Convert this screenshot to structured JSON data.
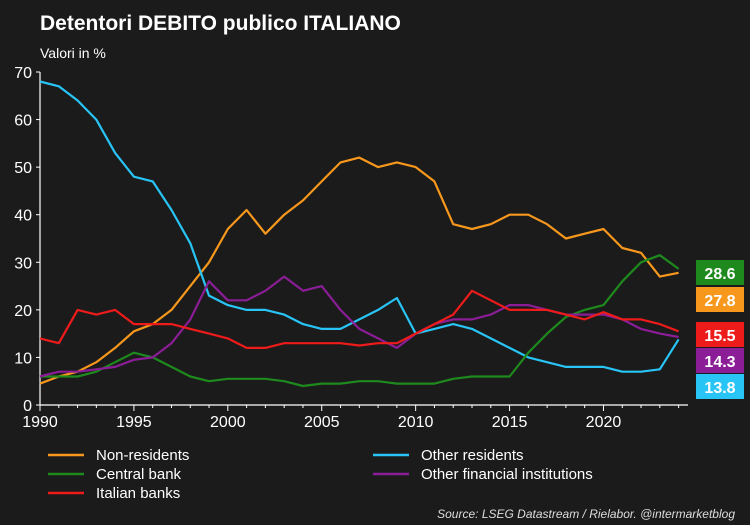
{
  "chart_data": {
    "type": "line",
    "title": "Detentori DEBITO publico ITALIANO",
    "subtitle": "Valori in %",
    "source": "Source: LSEG Datastream / Rielabor. @intermarketblog",
    "xlim": [
      1990,
      2024.5
    ],
    "ylim": [
      0,
      70
    ],
    "x_ticks": [
      1990,
      1995,
      2000,
      2005,
      2010,
      2015,
      2020
    ],
    "y_ticks": [
      0,
      10,
      20,
      30,
      40,
      50,
      60,
      70
    ],
    "grid": false,
    "legend_position": "bottom",
    "series": [
      {
        "name": "Non-residents",
        "color": "#f7981d",
        "last_label": "27.8",
        "points": [
          [
            1990,
            4.5
          ],
          [
            1991,
            6
          ],
          [
            1992,
            7
          ],
          [
            1993,
            9
          ],
          [
            1994,
            12
          ],
          [
            1995,
            15.5
          ],
          [
            1996,
            17
          ],
          [
            1997,
            20
          ],
          [
            1998,
            25
          ],
          [
            1999,
            30
          ],
          [
            2000,
            37
          ],
          [
            2001,
            41
          ],
          [
            2002,
            36
          ],
          [
            2003,
            40
          ],
          [
            2004,
            43
          ],
          [
            2005,
            47
          ],
          [
            2006,
            51
          ],
          [
            2007,
            52
          ],
          [
            2008,
            50
          ],
          [
            2009,
            51
          ],
          [
            2010,
            50
          ],
          [
            2011,
            47
          ],
          [
            2012,
            38
          ],
          [
            2013,
            37
          ],
          [
            2014,
            38
          ],
          [
            2015,
            40
          ],
          [
            2016,
            40
          ],
          [
            2017,
            38
          ],
          [
            2018,
            35
          ],
          [
            2019,
            36
          ],
          [
            2020,
            37
          ],
          [
            2021,
            33
          ],
          [
            2022,
            32
          ],
          [
            2023,
            27
          ],
          [
            2024,
            27.8
          ]
        ]
      },
      {
        "name": "Other residents",
        "color": "#29c4f6",
        "last_label": "13.8",
        "points": [
          [
            1990,
            68
          ],
          [
            1991,
            67
          ],
          [
            1992,
            64
          ],
          [
            1993,
            60
          ],
          [
            1994,
            53
          ],
          [
            1995,
            48
          ],
          [
            1996,
            47
          ],
          [
            1997,
            41
          ],
          [
            1998,
            34
          ],
          [
            1999,
            23
          ],
          [
            2000,
            21
          ],
          [
            2001,
            20
          ],
          [
            2002,
            20
          ],
          [
            2003,
            19
          ],
          [
            2004,
            17
          ],
          [
            2005,
            16
          ],
          [
            2006,
            16
          ],
          [
            2007,
            18
          ],
          [
            2008,
            20
          ],
          [
            2009,
            22.5
          ],
          [
            2010,
            15
          ],
          [
            2011,
            16
          ],
          [
            2012,
            17
          ],
          [
            2013,
            16
          ],
          [
            2014,
            14
          ],
          [
            2015,
            12
          ],
          [
            2016,
            10
          ],
          [
            2017,
            9
          ],
          [
            2018,
            8
          ],
          [
            2019,
            8
          ],
          [
            2020,
            8
          ],
          [
            2021,
            7
          ],
          [
            2022,
            7
          ],
          [
            2023,
            7.5
          ],
          [
            2024,
            13.8
          ]
        ]
      },
      {
        "name": "Central bank",
        "color": "#1e8a1e",
        "last_label": "28.6",
        "points": [
          [
            1990,
            6
          ],
          [
            1991,
            6
          ],
          [
            1992,
            6
          ],
          [
            1993,
            7
          ],
          [
            1994,
            9
          ],
          [
            1995,
            11
          ],
          [
            1996,
            10
          ],
          [
            1997,
            8
          ],
          [
            1998,
            6
          ],
          [
            1999,
            5
          ],
          [
            2000,
            5.5
          ],
          [
            2001,
            5.5
          ],
          [
            2002,
            5.5
          ],
          [
            2003,
            5
          ],
          [
            2004,
            4
          ],
          [
            2005,
            4.5
          ],
          [
            2006,
            4.5
          ],
          [
            2007,
            5
          ],
          [
            2008,
            5
          ],
          [
            2009,
            4.5
          ],
          [
            2010,
            4.5
          ],
          [
            2011,
            4.5
          ],
          [
            2012,
            5.5
          ],
          [
            2013,
            6
          ],
          [
            2014,
            6
          ],
          [
            2015,
            6
          ],
          [
            2016,
            11
          ],
          [
            2017,
            15
          ],
          [
            2018,
            18.5
          ],
          [
            2019,
            20
          ],
          [
            2020,
            21
          ],
          [
            2021,
            26
          ],
          [
            2022,
            30
          ],
          [
            2023,
            31.5
          ],
          [
            2024,
            28.6
          ]
        ]
      },
      {
        "name": "Other financial institutions",
        "color": "#8b1d96",
        "last_label": "14.3",
        "points": [
          [
            1990,
            6
          ],
          [
            1991,
            7
          ],
          [
            1992,
            7
          ],
          [
            1993,
            7.5
          ],
          [
            1994,
            8
          ],
          [
            1995,
            9.5
          ],
          [
            1996,
            10
          ],
          [
            1997,
            13
          ],
          [
            1998,
            18
          ],
          [
            1999,
            26
          ],
          [
            2000,
            22
          ],
          [
            2001,
            22
          ],
          [
            2002,
            24
          ],
          [
            2003,
            27
          ],
          [
            2004,
            24
          ],
          [
            2005,
            25
          ],
          [
            2006,
            20
          ],
          [
            2007,
            16
          ],
          [
            2008,
            14
          ],
          [
            2009,
            12
          ],
          [
            2010,
            15
          ],
          [
            2011,
            17
          ],
          [
            2012,
            18
          ],
          [
            2013,
            18
          ],
          [
            2014,
            19
          ],
          [
            2015,
            21
          ],
          [
            2016,
            21
          ],
          [
            2017,
            20
          ],
          [
            2018,
            19
          ],
          [
            2019,
            19
          ],
          [
            2020,
            19
          ],
          [
            2021,
            18
          ],
          [
            2022,
            16
          ],
          [
            2023,
            15
          ],
          [
            2024,
            14.3
          ]
        ]
      },
      {
        "name": "Italian banks",
        "color": "#ee1b1b",
        "last_label": "15.5",
        "points": [
          [
            1990,
            14
          ],
          [
            1991,
            13
          ],
          [
            1992,
            20
          ],
          [
            1993,
            19
          ],
          [
            1994,
            20
          ],
          [
            1995,
            17
          ],
          [
            1996,
            17
          ],
          [
            1997,
            17
          ],
          [
            1998,
            16
          ],
          [
            1999,
            15
          ],
          [
            2000,
            14
          ],
          [
            2001,
            12
          ],
          [
            2002,
            12
          ],
          [
            2003,
            13
          ],
          [
            2004,
            13
          ],
          [
            2005,
            13
          ],
          [
            2006,
            13
          ],
          [
            2007,
            12.5
          ],
          [
            2008,
            13
          ],
          [
            2009,
            13
          ],
          [
            2010,
            15
          ],
          [
            2011,
            17
          ],
          [
            2012,
            19
          ],
          [
            2013,
            24
          ],
          [
            2014,
            22
          ],
          [
            2015,
            20
          ],
          [
            2016,
            20
          ],
          [
            2017,
            20
          ],
          [
            2018,
            19
          ],
          [
            2019,
            18
          ],
          [
            2020,
            19.5
          ],
          [
            2021,
            18
          ],
          [
            2022,
            18
          ],
          [
            2023,
            17
          ],
          [
            2024,
            15.5
          ]
        ]
      }
    ]
  }
}
